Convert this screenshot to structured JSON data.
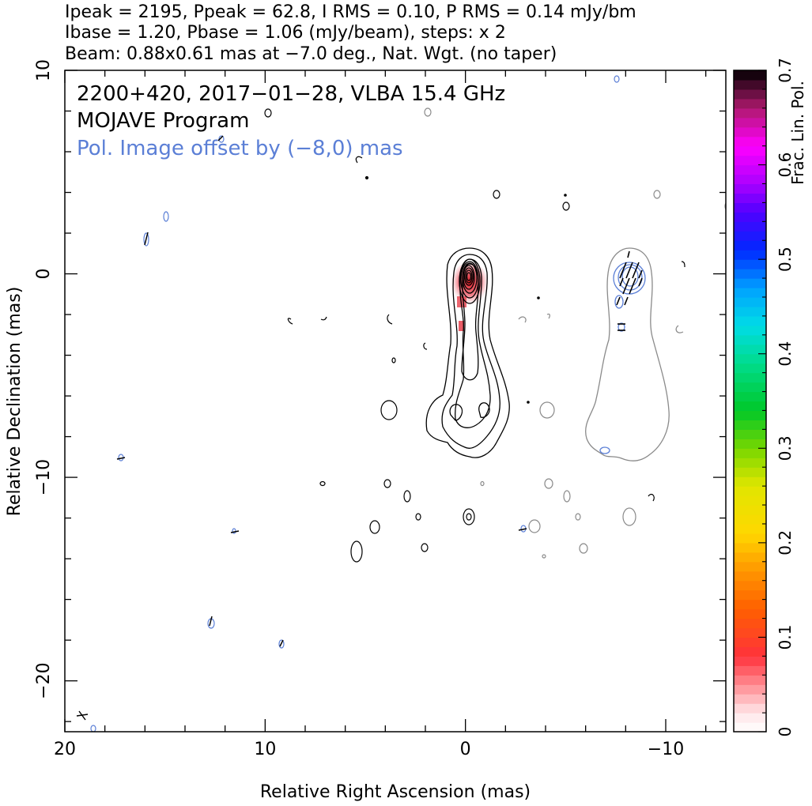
{
  "header": {
    "line1": "Ipeak = 2195, Ppeak = 62.8, I RMS = 0.10, P RMS = 0.14 mJy/bm",
    "line2": "Ibase = 1.20, Pbase = 1.06 (mJy/beam), steps: x 2",
    "line3": "Beam: 0.88x0.61 mas at −7.0 deg., Nat. Wgt. (no taper)"
  },
  "chart_data": {
    "type": "heatmap",
    "title": "2200+420, 2017−01−28, VLBA 15.4 GHz",
    "subtitle": "MOJAVE Program",
    "annotation": "Pol. Image offset by (−8,0) mas",
    "xlabel": "Relative Right Ascension (mas)",
    "ylabel": "Relative Declination (mas)",
    "xlim": [
      20,
      -13
    ],
    "ylim": [
      -22.5,
      10
    ],
    "x_ticks": [
      20,
      10,
      0,
      -10
    ],
    "x_tick_labels": [
      "20",
      "10",
      "0",
      "−10"
    ],
    "y_ticks": [
      10,
      0,
      -10,
      -20
    ],
    "y_tick_labels": [
      "10",
      "0",
      "−10",
      "−20"
    ],
    "colorbar": {
      "label": "Frac. Lin. Pol.",
      "range": [
        0,
        0.7
      ],
      "ticks": [
        0,
        0.1,
        0.2,
        0.3,
        0.4,
        0.5,
        0.6,
        0.7
      ],
      "tick_labels": [
        "0",
        "0.1",
        "0.2",
        "0.3",
        "0.4",
        "0.5",
        "0.6",
        "0.7"
      ]
    },
    "beam": {
      "major_mas": 0.88,
      "minor_mas": 0.61,
      "pa_deg": -7.0
    },
    "peak_intensity_mJy": 2195,
    "peak_pol_mJy": 62.8,
    "contour_steps": "x 2",
    "colors": {
      "stokes_i_contours": "#000000",
      "pol_contours": "#5b7fd6",
      "offset_total_intensity_contours": "#808080",
      "frac_pol_fill": "#e8162b",
      "evpa_ticks": "#000000"
    }
  }
}
